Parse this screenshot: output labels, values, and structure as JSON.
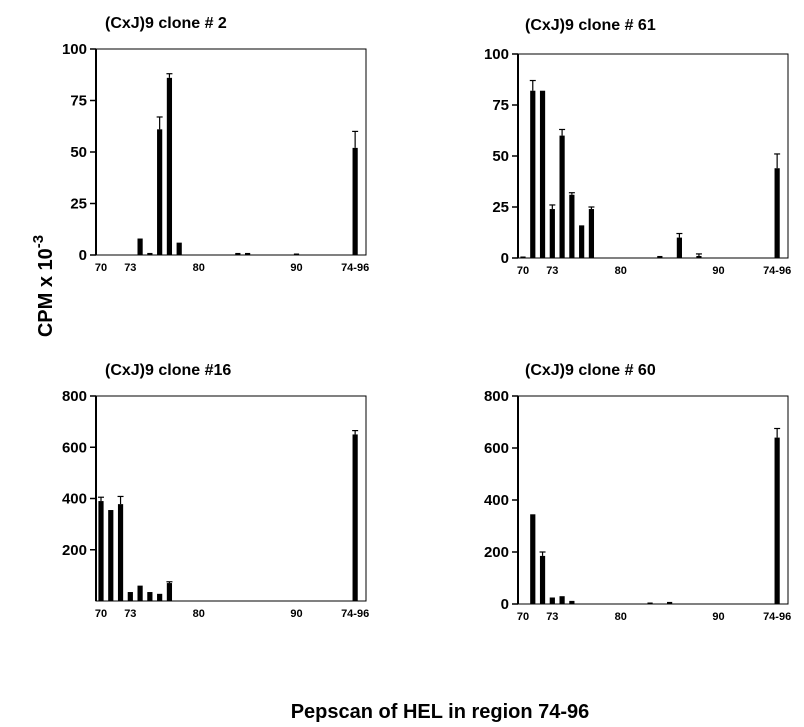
{
  "figure": {
    "y_label": "CPM x 10",
    "y_label_exponent": "-3",
    "x_label": "Pepscan of HEL in region 74-96"
  },
  "chart_data": [
    {
      "type": "bar",
      "title": "(CxJ)9 clone # 2",
      "ylim": [
        0,
        100
      ],
      "yticks": [
        0,
        25,
        50,
        75,
        100
      ],
      "xticks": [
        {
          "peptide": 70,
          "label": "70"
        },
        {
          "peptide": 73,
          "label": "73"
        },
        {
          "peptide": 80,
          "label": "80"
        },
        {
          "peptide": 90,
          "label": "90"
        },
        {
          "peptide": 96,
          "label": "74-96"
        }
      ],
      "bars": [
        {
          "peptide": 74,
          "value": 8,
          "err": 0
        },
        {
          "peptide": 75,
          "value": 1,
          "err": 0
        },
        {
          "peptide": 76,
          "value": 61,
          "err": 6
        },
        {
          "peptide": 77,
          "value": 86,
          "err": 2
        },
        {
          "peptide": 78,
          "value": 6,
          "err": 0
        },
        {
          "peptide": 84,
          "value": 1,
          "err": 0
        },
        {
          "peptide": 85,
          "value": 1,
          "err": 0
        },
        {
          "peptide": 90,
          "value": 0.5,
          "err": 0
        },
        {
          "peptide": 96,
          "value": 52,
          "err": 8
        }
      ],
      "grid": false
    },
    {
      "type": "bar",
      "title": "(CxJ)9 clone # 61",
      "ylim": [
        0,
        100
      ],
      "yticks": [
        0,
        25,
        50,
        75,
        100
      ],
      "xticks": [
        {
          "peptide": 70,
          "label": "70"
        },
        {
          "peptide": 73,
          "label": "73"
        },
        {
          "peptide": 80,
          "label": "80"
        },
        {
          "peptide": 90,
          "label": "90"
        },
        {
          "peptide": 96,
          "label": "74-96"
        }
      ],
      "bars": [
        {
          "peptide": 70,
          "value": 0.5,
          "err": 0
        },
        {
          "peptide": 71,
          "value": 82,
          "err": 5
        },
        {
          "peptide": 72,
          "value": 82,
          "err": 0
        },
        {
          "peptide": 73,
          "value": 24,
          "err": 2
        },
        {
          "peptide": 74,
          "value": 60,
          "err": 3
        },
        {
          "peptide": 75,
          "value": 31,
          "err": 1
        },
        {
          "peptide": 76,
          "value": 16,
          "err": 0
        },
        {
          "peptide": 77,
          "value": 24,
          "err": 1
        },
        {
          "peptide": 84,
          "value": 1,
          "err": 0
        },
        {
          "peptide": 86,
          "value": 10,
          "err": 2
        },
        {
          "peptide": 88,
          "value": 1,
          "err": 1
        },
        {
          "peptide": 96,
          "value": 44,
          "err": 7
        }
      ],
      "grid": false
    },
    {
      "type": "bar",
      "title": "(CxJ)9 clone #16",
      "ylim": [
        0,
        800
      ],
      "yticks": [
        200,
        400,
        600,
        800
      ],
      "xticks": [
        {
          "peptide": 70,
          "label": "70"
        },
        {
          "peptide": 73,
          "label": "73"
        },
        {
          "peptide": 80,
          "label": "80"
        },
        {
          "peptide": 90,
          "label": "90"
        },
        {
          "peptide": 96,
          "label": "74-96"
        }
      ],
      "bars": [
        {
          "peptide": 70,
          "value": 390,
          "err": 15
        },
        {
          "peptide": 71,
          "value": 355,
          "err": 0
        },
        {
          "peptide": 72,
          "value": 378,
          "err": 30
        },
        {
          "peptide": 73,
          "value": 35,
          "err": 0
        },
        {
          "peptide": 74,
          "value": 60,
          "err": 0
        },
        {
          "peptide": 75,
          "value": 35,
          "err": 0
        },
        {
          "peptide": 76,
          "value": 28,
          "err": 0
        },
        {
          "peptide": 77,
          "value": 70,
          "err": 5
        },
        {
          "peptide": 96,
          "value": 650,
          "err": 15
        }
      ],
      "grid": false
    },
    {
      "type": "bar",
      "title": "(CxJ)9 clone # 60",
      "ylim": [
        0,
        800
      ],
      "yticks": [
        0,
        200,
        400,
        600,
        800
      ],
      "xticks": [
        {
          "peptide": 70,
          "label": "70"
        },
        {
          "peptide": 73,
          "label": "73"
        },
        {
          "peptide": 80,
          "label": "80"
        },
        {
          "peptide": 90,
          "label": "90"
        },
        {
          "peptide": 96,
          "label": "74-96"
        }
      ],
      "bars": [
        {
          "peptide": 71,
          "value": 345,
          "err": 0
        },
        {
          "peptide": 72,
          "value": 185,
          "err": 15
        },
        {
          "peptide": 73,
          "value": 25,
          "err": 0
        },
        {
          "peptide": 74,
          "value": 30,
          "err": 0
        },
        {
          "peptide": 75,
          "value": 12,
          "err": 0
        },
        {
          "peptide": 83,
          "value": 5,
          "err": 0
        },
        {
          "peptide": 85,
          "value": 8,
          "err": 0
        },
        {
          "peptide": 96,
          "value": 640,
          "err": 35
        }
      ],
      "grid": false
    }
  ]
}
